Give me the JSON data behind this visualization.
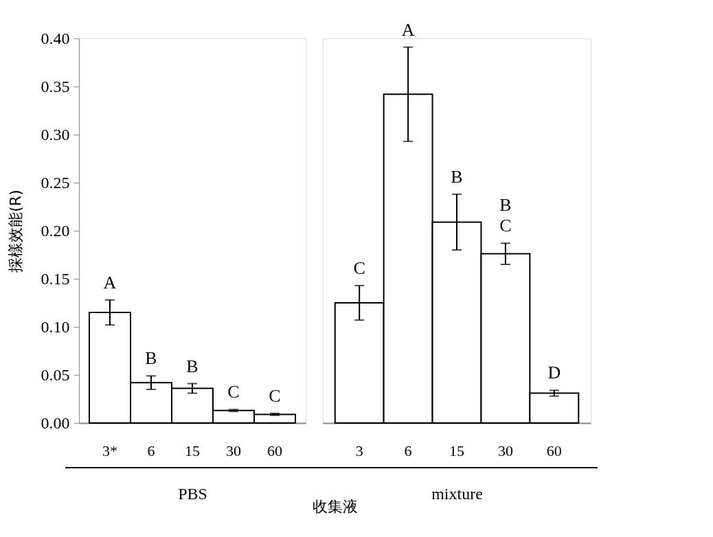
{
  "chart_data": [
    {
      "type": "bar",
      "xlabel": "PBS",
      "ylabel": "採樣效能(R)",
      "categories": [
        "3*",
        "6",
        "15",
        "30",
        "60"
      ],
      "values": [
        0.115,
        0.042,
        0.036,
        0.013,
        0.009
      ],
      "errors": [
        0.013,
        0.007,
        0.005,
        0.001,
        0.001
      ],
      "value_labels": [
        "A",
        "B",
        "B",
        "C",
        "C"
      ],
      "color": "#ffffff",
      "ylim": [
        0,
        0.4
      ],
      "yticks": [
        {
          "value": 0,
          "label": "0.00"
        },
        {
          "value": 0.05,
          "label": "0.05"
        },
        {
          "value": 0.1,
          "label": "0.10"
        },
        {
          "value": 0.15,
          "label": "0.15"
        },
        {
          "value": 0.2,
          "label": "0.20"
        },
        {
          "value": 0.25,
          "label": "0.25"
        },
        {
          "value": 0.3,
          "label": "0.30"
        },
        {
          "value": 0.35,
          "label": "0.35"
        },
        {
          "value": 0.4,
          "label": "0.40"
        }
      ],
      "grid": false,
      "annotations": [
        "收集液"
      ]
    },
    {
      "type": "bar",
      "xlabel": "mixture",
      "categories": [
        "3",
        "6",
        "15",
        "30",
        "60"
      ],
      "values": [
        0.125,
        0.342,
        0.209,
        0.176,
        0.031
      ],
      "errors": [
        0.018,
        0.049,
        0.029,
        0.011,
        0.003
      ],
      "value_labels": [
        "C",
        "A",
        "B",
        "B\nC",
        "D"
      ],
      "color": "#ffffff",
      "ylim": [
        0,
        0.4
      ],
      "tick_labels": "x",
      "grid": false
    }
  ]
}
